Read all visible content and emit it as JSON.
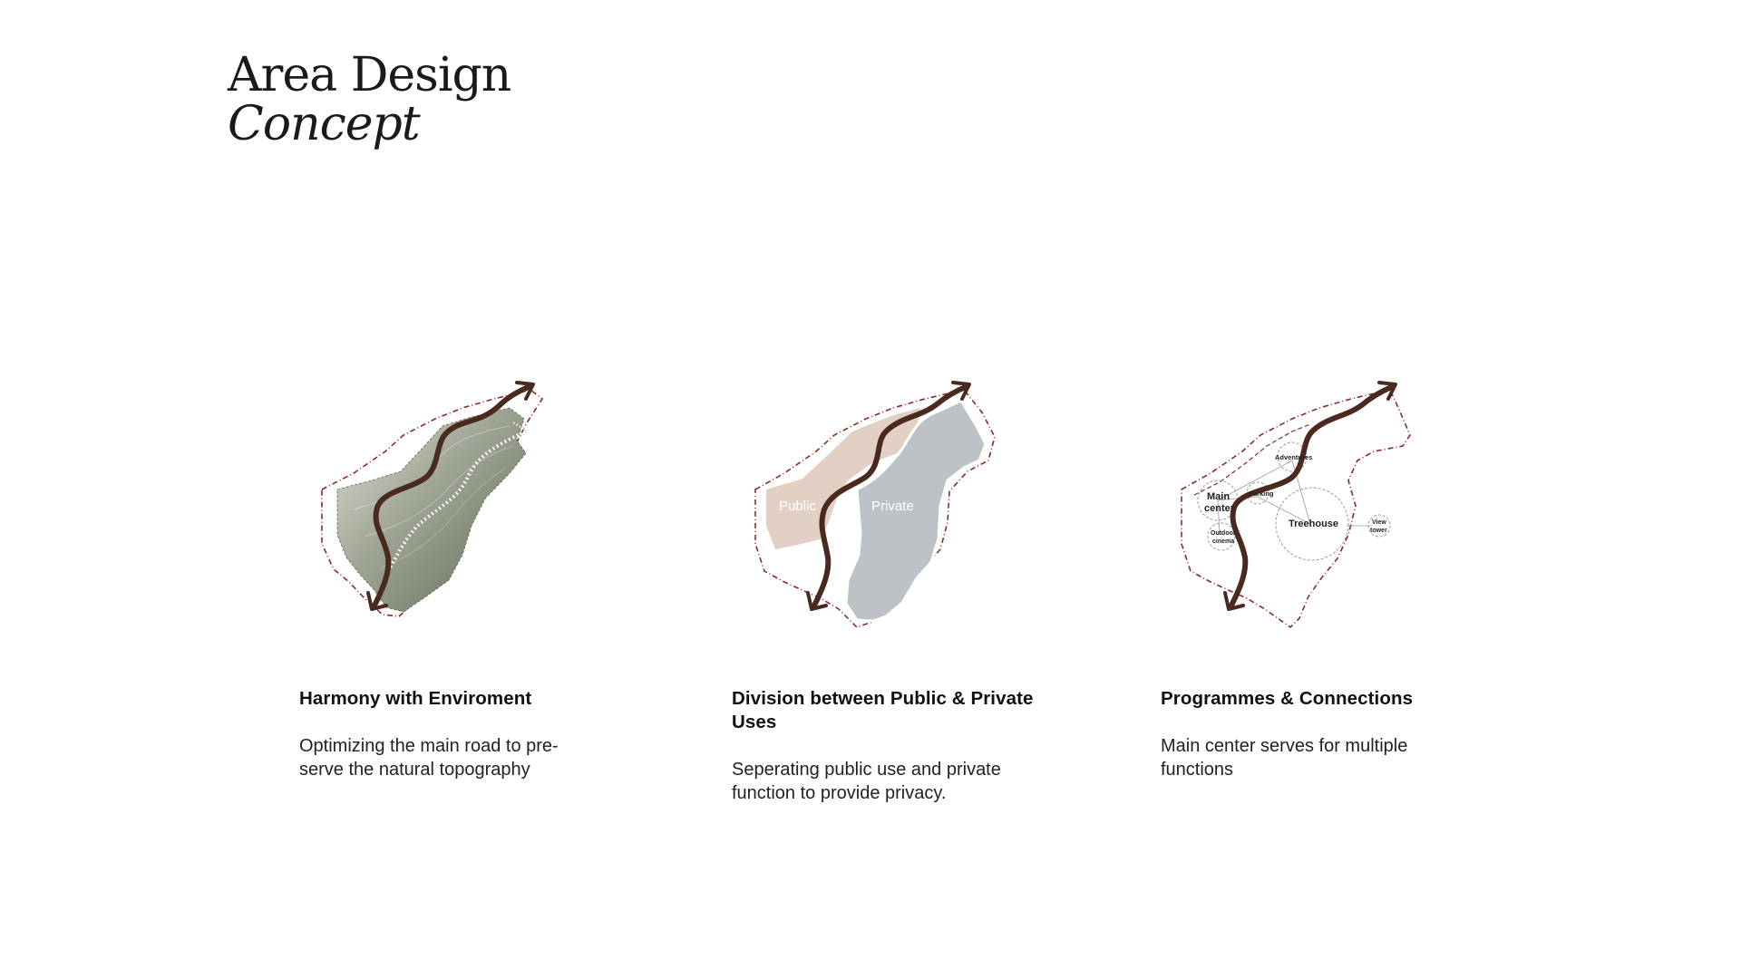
{
  "title": {
    "line1": "Area Design",
    "line2": "Concept"
  },
  "colors": {
    "road": "#4a2a1e",
    "boundary": "#8a2a2a",
    "terrain": "#8e9885",
    "public": "#e2d0c4",
    "private": "#bcc2c6"
  },
  "panels": [
    {
      "heading": "Harmony with Enviroment",
      "body": "Optimizing the main road to pre-serve the natural topography"
    },
    {
      "heading": "Division between Public & Private Uses",
      "body": "Seperating public use and private function to provide privacy.",
      "zone_labels": {
        "public": "Public",
        "private": "Private"
      }
    },
    {
      "heading": "Programmes & Connections",
      "body": "Main center serves for multiple functions",
      "nodes": {
        "main_center_line1": "Main",
        "main_center_line2": "center",
        "adventures": "Adventures",
        "parking": "Parking",
        "outdoor_cinema_line1": "Outdoor",
        "outdoor_cinema_line2": "cinema",
        "treehouse": "Treehouse",
        "view_tower_line1": "View",
        "view_tower_line2": "tower"
      }
    }
  ]
}
